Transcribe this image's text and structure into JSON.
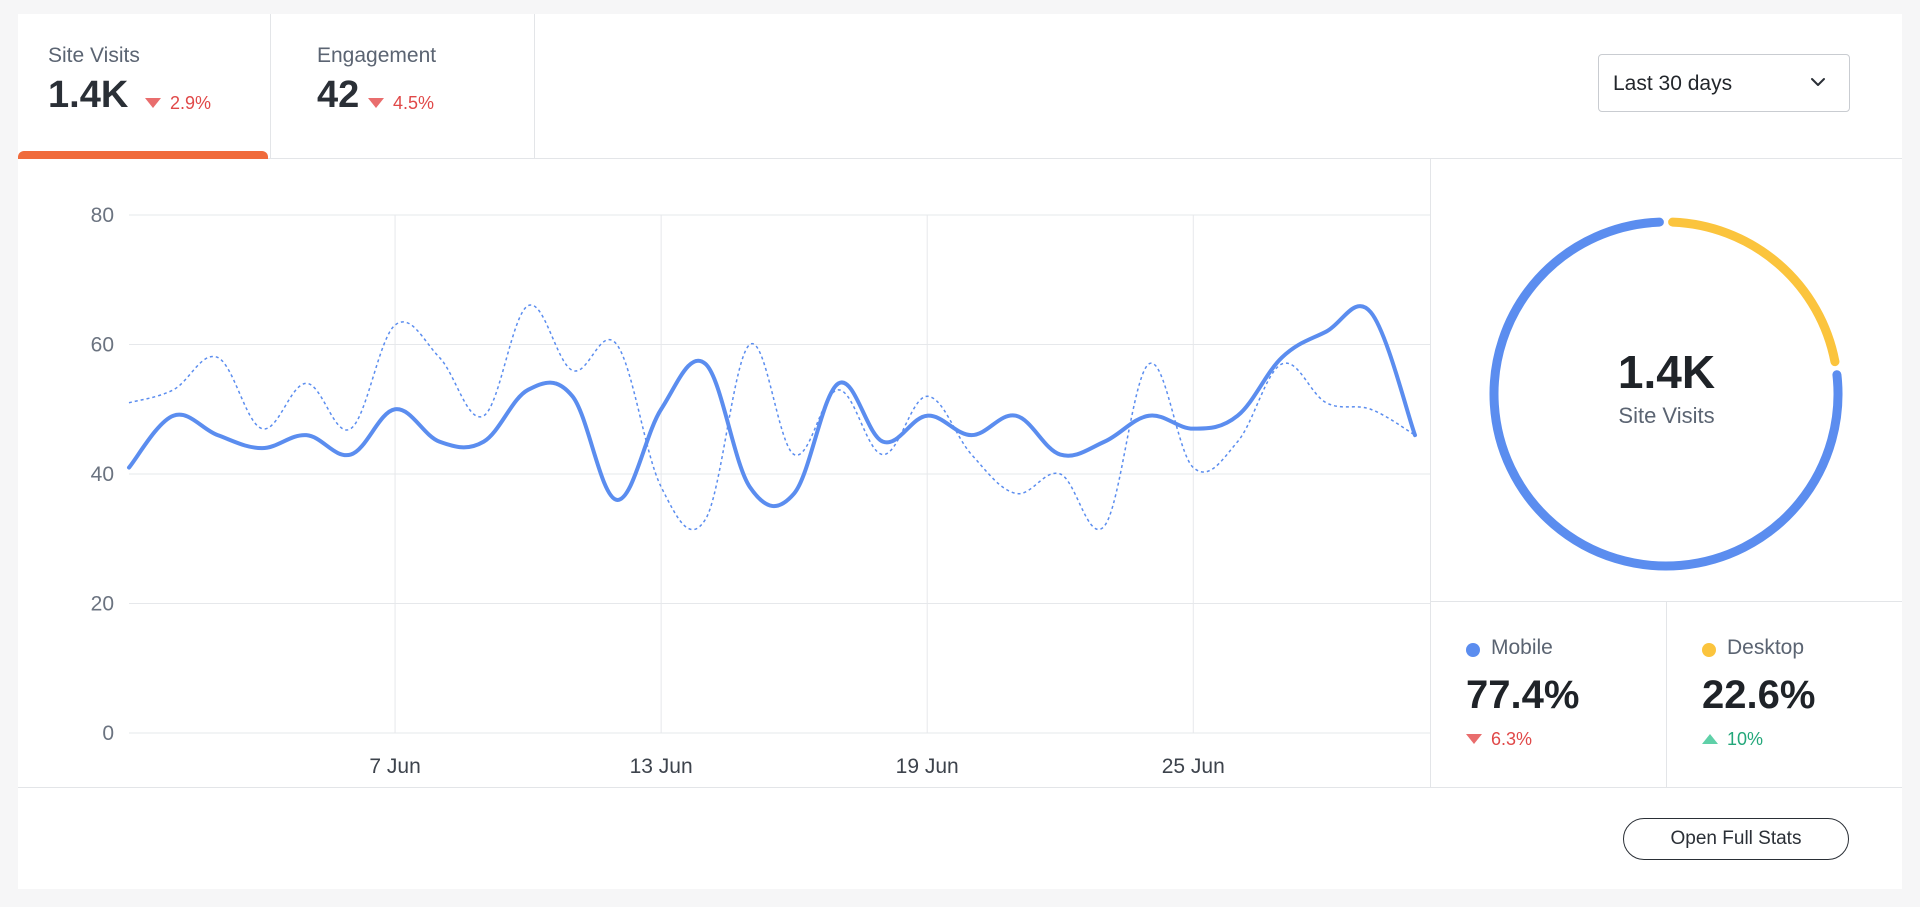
{
  "tabs": [
    {
      "label": "Site Visits",
      "value": "1.4K",
      "delta": "2.9%",
      "direction": "down",
      "active": true
    },
    {
      "label": "Engagement",
      "value": "42",
      "delta": "4.5%",
      "direction": "down",
      "active": false
    }
  ],
  "range_select": {
    "value": "Last 30 days"
  },
  "chart_data": {
    "type": "line",
    "xlabel": "",
    "ylabel": "",
    "ylim": [
      0,
      80
    ],
    "yticks": [
      "0",
      "20",
      "40",
      "60",
      "80"
    ],
    "xticks": [
      "7 Jun",
      "13 Jun",
      "19 Jun",
      "25 Jun"
    ],
    "x": [
      "1 Jun",
      "2 Jun",
      "3 Jun",
      "4 Jun",
      "5 Jun",
      "6 Jun",
      "7 Jun",
      "8 Jun",
      "9 Jun",
      "10 Jun",
      "11 Jun",
      "12 Jun",
      "13 Jun",
      "14 Jun",
      "15 Jun",
      "16 Jun",
      "17 Jun",
      "18 Jun",
      "19 Jun",
      "20 Jun",
      "21 Jun",
      "22 Jun",
      "23 Jun",
      "24 Jun",
      "25 Jun",
      "26 Jun",
      "27 Jun",
      "28 Jun",
      "29 Jun",
      "30 Jun"
    ],
    "series": [
      {
        "style": "solid",
        "color": "#5b8def",
        "values": [
          41,
          49,
          46,
          44,
          46,
          43,
          50,
          45,
          45,
          53,
          52,
          36,
          50,
          57,
          38,
          37,
          54,
          45,
          49,
          46,
          49,
          43,
          45,
          49,
          47,
          49,
          58,
          62,
          65,
          46
        ]
      },
      {
        "style": "dotted",
        "color": "#5b8def",
        "values": [
          51,
          53,
          58,
          47,
          54,
          47,
          63,
          58,
          49,
          66,
          56,
          60,
          38,
          33,
          60,
          43,
          53,
          43,
          52,
          43,
          37,
          40,
          32,
          57,
          41,
          45,
          57,
          51,
          50,
          46
        ]
      }
    ],
    "grid": true
  },
  "donut": {
    "value": "1.4K",
    "label": "Site Visits",
    "segments": [
      {
        "name": "Mobile",
        "share": 77.4,
        "color": "#5b8def"
      },
      {
        "name": "Desktop",
        "share": 22.6,
        "color": "#fbc43d"
      }
    ]
  },
  "segments": [
    {
      "name": "Mobile",
      "value": "77.4%",
      "delta": "6.3%",
      "direction": "down",
      "color": "#5b8def",
      "delta_color": "#e04848"
    },
    {
      "name": "Desktop",
      "value": "22.6%",
      "delta": "10%",
      "direction": "up",
      "color": "#fbc43d",
      "delta_color": "#23a77a"
    }
  ],
  "footer": {
    "button_label": "Open Full Stats"
  },
  "colors": {
    "accent": "#f06b3c",
    "series": "#5b8def",
    "down": "#e04848",
    "up": "#23a77a"
  }
}
